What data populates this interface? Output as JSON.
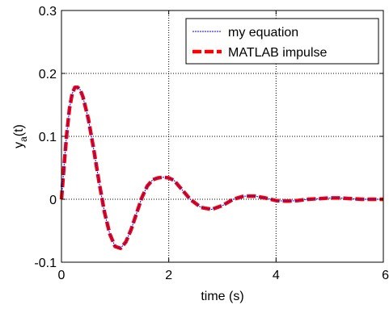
{
  "chart_data": {
    "type": "line",
    "xlabel": "time (s)",
    "ylabel": {
      "base": "y",
      "sub": "a",
      "rest": "(t)"
    },
    "xlim": [
      0,
      6
    ],
    "ylim": [
      -0.1,
      0.3
    ],
    "xticks": [
      0,
      2,
      4,
      6
    ],
    "yticks": [
      -0.1,
      0,
      0.1,
      0.2,
      0.3
    ],
    "xtick_labels": [
      "0",
      "2",
      "4",
      "6"
    ],
    "ytick_labels": [
      "-0.1",
      "0",
      "0.1",
      "0.2",
      "0.3"
    ],
    "grid": true,
    "grid_style": "dotted",
    "legend_position": "top-right",
    "series": [
      {
        "name": "my equation",
        "color": "#0000ff",
        "style": "dotted-thin",
        "x": [
          0,
          0.05,
          0.1,
          0.15,
          0.2,
          0.25,
          0.3,
          0.35,
          0.4,
          0.5,
          0.6,
          0.7,
          0.8,
          0.9,
          1.0,
          1.1,
          1.2,
          1.3,
          1.4,
          1.5,
          1.6,
          1.7,
          1.8,
          1.9,
          2.0,
          2.1,
          2.2,
          2.4,
          2.6,
          2.8,
          3.0,
          3.2,
          3.4,
          3.6,
          3.8,
          4.0,
          4.2,
          4.4,
          4.6,
          4.8,
          5.0,
          5.2,
          5.4,
          5.6,
          5.8,
          6.0
        ],
        "y": [
          0,
          0.055,
          0.105,
          0.145,
          0.168,
          0.178,
          0.178,
          0.174,
          0.163,
          0.128,
          0.08,
          0.028,
          -0.02,
          -0.055,
          -0.075,
          -0.078,
          -0.068,
          -0.048,
          -0.022,
          0.003,
          0.021,
          0.031,
          0.034,
          0.035,
          0.034,
          0.03,
          0.02,
          0.0,
          -0.013,
          -0.016,
          -0.01,
          0.0,
          0.005,
          0.005,
          0.002,
          -0.002,
          -0.003,
          -0.002,
          0.0,
          0.001,
          0.002,
          0.002,
          0.001,
          0.0,
          0.0,
          0.0
        ]
      },
      {
        "name": "MATLAB impulse",
        "color": "#ff0000",
        "style": "dashed-thick",
        "x": [
          0,
          0.05,
          0.1,
          0.15,
          0.2,
          0.25,
          0.3,
          0.35,
          0.4,
          0.5,
          0.6,
          0.7,
          0.8,
          0.9,
          1.0,
          1.1,
          1.2,
          1.3,
          1.4,
          1.5,
          1.6,
          1.7,
          1.8,
          1.9,
          2.0,
          2.1,
          2.2,
          2.4,
          2.6,
          2.8,
          3.0,
          3.2,
          3.4,
          3.6,
          3.8,
          4.0,
          4.2,
          4.4,
          4.6,
          4.8,
          5.0,
          5.2,
          5.4,
          5.6,
          5.8,
          6.0
        ],
        "y": [
          0,
          0.055,
          0.105,
          0.145,
          0.168,
          0.178,
          0.178,
          0.174,
          0.163,
          0.128,
          0.08,
          0.028,
          -0.02,
          -0.055,
          -0.075,
          -0.078,
          -0.068,
          -0.048,
          -0.022,
          0.003,
          0.021,
          0.031,
          0.034,
          0.035,
          0.034,
          0.03,
          0.02,
          0.0,
          -0.013,
          -0.016,
          -0.01,
          0.0,
          0.005,
          0.005,
          0.002,
          -0.002,
          -0.003,
          -0.002,
          0.0,
          0.001,
          0.002,
          0.002,
          0.001,
          0.0,
          0.0,
          0.0
        ]
      }
    ]
  }
}
